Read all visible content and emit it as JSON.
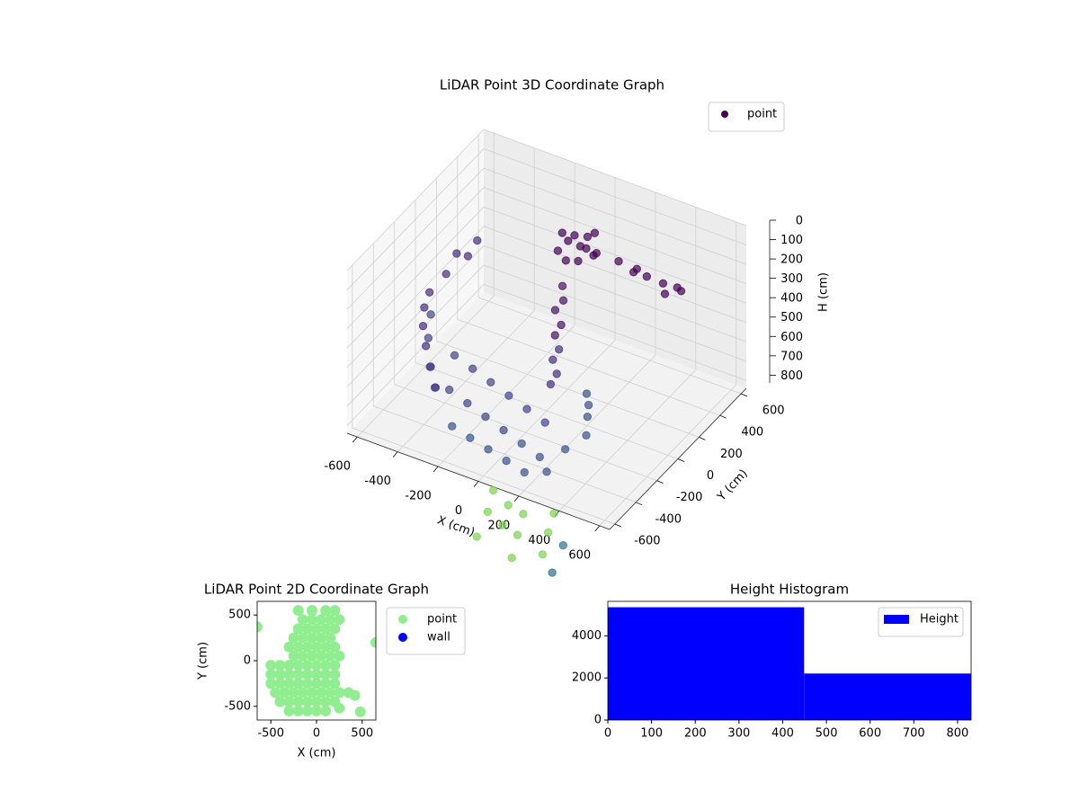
{
  "chart_data": [
    {
      "type": "scatter3d",
      "title": "LiDAR Point 3D Coordinate Graph",
      "xlabel": "X (cm)",
      "ylabel": "Y (cm)",
      "zlabel": "H (cm)",
      "xlim": [
        -650,
        650
      ],
      "ylim": [
        -650,
        650
      ],
      "zlim": [
        0,
        840
      ],
      "z_inverted": true,
      "xticks": [
        -600,
        -400,
        -200,
        0,
        200,
        400,
        600
      ],
      "yticks": [
        -600,
        -400,
        -200,
        0,
        200,
        400,
        600
      ],
      "zticks": [
        0,
        100,
        200,
        300,
        400,
        500,
        600,
        700,
        800
      ],
      "grid": true,
      "legend": "upper right",
      "alpha": 0.7,
      "series": [
        {
          "name": "point",
          "color": "#440154",
          "x": [
            -50,
            0,
            50,
            -80,
            20,
            60,
            -30,
            90,
            -100,
            10,
            40,
            -60,
            200,
            280,
            350,
            420,
            480,
            520,
            300,
            450,
            0,
            20,
            -10,
            30,
            10,
            40,
            20,
            50,
            30,
            -550,
            -550,
            -500,
            -520,
            -580,
            -580,
            -560,
            -520,
            -470,
            -420,
            -600,
            -560,
            -500,
            -450,
            -300,
            -200,
            -100,
            0,
            100,
            200,
            -300,
            -200,
            -100,
            0,
            100,
            200,
            300,
            -250,
            -150,
            -50,
            50,
            150,
            250,
            250,
            280,
            300,
            270,
            100,
            200,
            300,
            400,
            250,
            350,
            150,
            450,
            500,
            200,
            400,
            550,
            600
          ],
          "y": [
            300,
            320,
            280,
            260,
            350,
            330,
            240,
            300,
            340,
            280,
            380,
            380,
            300,
            320,
            280,
            300,
            320,
            280,
            250,
            260,
            150,
            120,
            100,
            80,
            60,
            40,
            20,
            0,
            -20,
            200,
            100,
            300,
            250,
            0,
            -50,
            -100,
            -150,
            -200,
            -250,
            50,
            -50,
            -150,
            -200,
            -300,
            -320,
            -340,
            -360,
            -380,
            -400,
            -350,
            -370,
            -390,
            -410,
            -430,
            -450,
            -400,
            -420,
            -440,
            -460,
            -480,
            -500,
            -480,
            -100,
            -150,
            -200,
            -120,
            -700,
            -750,
            -800,
            -700,
            -900,
            -950,
            -850,
            -850,
            -1000,
            -1050,
            -1100,
            -900,
            -1100
          ],
          "z": [
            150,
            170,
            140,
            190,
            130,
            200,
            210,
            160,
            150,
            220,
            120,
            170,
            160,
            180,
            170,
            190,
            200,
            180,
            150,
            210,
            280,
            330,
            380,
            430,
            480,
            530,
            580,
            630,
            680,
            350,
            400,
            320,
            380,
            450,
            500,
            560,
            620,
            680,
            740,
            600,
            650,
            720,
            780,
            500,
            520,
            540,
            560,
            580,
            600,
            650,
            670,
            690,
            710,
            730,
            750,
            700,
            780,
            790,
            800,
            810,
            820,
            790,
            600,
            680,
            740,
            640,
            820,
            830,
            810,
            825,
            830,
            815,
            828,
            820,
            830,
            825,
            830,
            820,
            830
          ],
          "colors": [
            "#440154",
            "#440154",
            "#440154",
            "#440154",
            "#440154",
            "#440154",
            "#440154",
            "#440154",
            "#440154",
            "#440154",
            "#440154",
            "#440154",
            "#440154",
            "#440154",
            "#440154",
            "#440154",
            "#440154",
            "#440154",
            "#440154",
            "#440154",
            "#471365",
            "#471365",
            "#471365",
            "#471365",
            "#471365",
            "#472d7b",
            "#472d7b",
            "#472d7b",
            "#472d7b",
            "#472d7b",
            "#472d7b",
            "#472d7b",
            "#472d7b",
            "#472d7b",
            "#472d7b",
            "#472d7b",
            "#472d7b",
            "#472d7b",
            "#472d7b",
            "#414487",
            "#414487",
            "#414487",
            "#414487",
            "#414487",
            "#414487",
            "#414487",
            "#414487",
            "#414487",
            "#414487",
            "#414487",
            "#414487",
            "#414487",
            "#414487",
            "#3b528b",
            "#3b528b",
            "#3b528b",
            "#3b528b",
            "#3b528b",
            "#3b528b",
            "#3b528b",
            "#3b528b",
            "#3b528b",
            "#3b528b",
            "#3b528b",
            "#3b528b",
            "#3b528b",
            "#7ad151",
            "#7ad151",
            "#7ad151",
            "#7ad151",
            "#7ad151",
            "#7ad151",
            "#7ad151",
            "#7ad151",
            "#7ad151",
            "#7ad151",
            "#7ad151",
            "#2c728e",
            "#2c728e"
          ]
        }
      ]
    },
    {
      "type": "scatter",
      "title": "LiDAR Point 2D Coordinate Graph",
      "xlabel": "X (cm)",
      "ylabel": "Y (cm)",
      "xlim": [
        -650,
        650
      ],
      "ylim": [
        -650,
        650
      ],
      "xticks": [
        -500,
        0,
        500
      ],
      "yticks": [
        -500,
        0,
        500
      ],
      "legend": "outside right",
      "series": [
        {
          "name": "point",
          "color": "#90ee90",
          "x": [
            -500,
            -400,
            -300,
            -200,
            -100,
            0,
            100,
            200,
            -500,
            -400,
            -300,
            -200,
            -100,
            0,
            100,
            200,
            -500,
            -400,
            -300,
            -200,
            -100,
            0,
            100,
            200,
            -450,
            -350,
            -250,
            -150,
            -50,
            50,
            150,
            250,
            350,
            -400,
            -300,
            -200,
            -100,
            0,
            100,
            200,
            -300,
            -200,
            -100,
            0,
            100,
            420,
            480,
            250,
            -250,
            -150,
            -50,
            50,
            150,
            250,
            -300,
            -200,
            -100,
            0,
            100,
            200,
            -250,
            -150,
            -50,
            50,
            150,
            -200,
            -100,
            0,
            100,
            200,
            -150,
            -50,
            50,
            150,
            250,
            -200,
            -50,
            100,
            200,
            650,
            -650
          ],
          "y": [
            -50,
            -50,
            -50,
            -50,
            -50,
            -50,
            -50,
            -50,
            -150,
            -150,
            -150,
            -150,
            -150,
            -150,
            -150,
            -150,
            -250,
            -250,
            -250,
            -250,
            -250,
            -250,
            -250,
            -250,
            -350,
            -350,
            -350,
            -350,
            -350,
            -350,
            -350,
            -350,
            -350,
            -450,
            -450,
            -450,
            -450,
            -450,
            -450,
            -450,
            -550,
            -550,
            -550,
            -550,
            -550,
            -380,
            -560,
            -520,
            50,
            50,
            50,
            50,
            50,
            50,
            150,
            150,
            150,
            150,
            150,
            150,
            250,
            250,
            250,
            250,
            250,
            350,
            350,
            350,
            350,
            350,
            450,
            450,
            450,
            450,
            450,
            550,
            550,
            550,
            550,
            200,
            370
          ]
        },
        {
          "name": "wall",
          "color": "#0000ff",
          "x": [],
          "y": []
        }
      ]
    },
    {
      "type": "histogram",
      "title": "Height Histogram",
      "bins": [
        0,
        449,
        831
      ],
      "xlim": [
        0,
        831
      ],
      "ylim": [
        0,
        5640
      ],
      "xticks": [
        0,
        100,
        200,
        300,
        400,
        500,
        600,
        700,
        800
      ],
      "yticks": [
        0,
        2000,
        4000
      ],
      "legend": "upper right",
      "series": [
        {
          "name": "Height",
          "color": "#0000ff",
          "values": [
            5360,
            2210
          ]
        }
      ]
    }
  ]
}
